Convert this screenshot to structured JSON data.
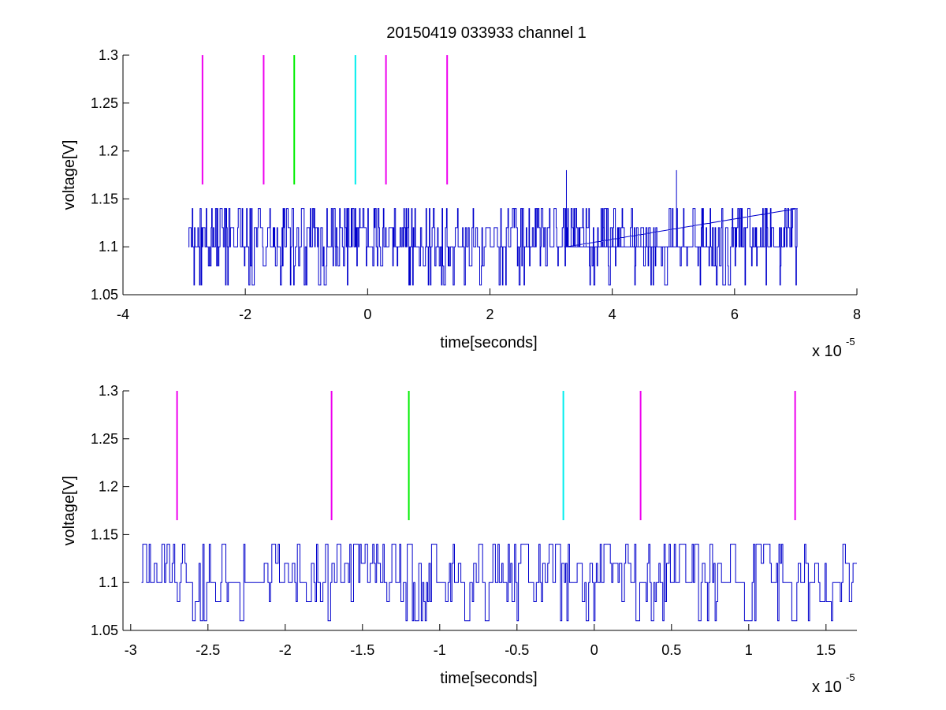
{
  "chart_data": [
    {
      "type": "line",
      "title": "20150419 033933 channel 1",
      "xlabel": "time[seconds]",
      "ylabel": "voltage[V]",
      "x_multiplier_label": "x 10",
      "x_multiplier_exponent": "-5",
      "xlim": [
        -4,
        8
      ],
      "ylim": [
        1.05,
        1.3
      ],
      "xticks": [
        -4,
        -2,
        0,
        2,
        4,
        6,
        8
      ],
      "xtick_labels": [
        "-4",
        "-2",
        "0",
        "2",
        "4",
        "6",
        "8"
      ],
      "yticks": [
        1.05,
        1.1,
        1.15,
        1.2,
        1.25,
        1.3
      ],
      "ytick_labels": [
        "1.05",
        "1.1",
        "1.15",
        "1.2",
        "1.25",
        "1.3"
      ],
      "signal": {
        "color": "#0000cc",
        "x_start": -2.93,
        "x_end": 7.03,
        "base": 1.1,
        "levels": [
          1.06,
          1.08,
          1.1,
          1.12,
          1.14
        ],
        "spikes": [
          {
            "x": 3.25,
            "y": 1.18
          },
          {
            "x": 5.05,
            "y": 1.18
          }
        ]
      },
      "markers": [
        {
          "x": -2.7,
          "y_low": 1.165,
          "y_high": 1.3,
          "color": "#ee00ee"
        },
        {
          "x": -1.7,
          "y_low": 1.165,
          "y_high": 1.3,
          "color": "#ee00ee"
        },
        {
          "x": -1.2,
          "y_low": 1.165,
          "y_high": 1.3,
          "color": "#00ee00"
        },
        {
          "x": -0.2,
          "y_low": 1.165,
          "y_high": 1.3,
          "color": "#00eeee"
        },
        {
          "x": 0.3,
          "y_low": 1.165,
          "y_high": 1.3,
          "color": "#ee00ee"
        },
        {
          "x": 1.3,
          "y_low": 1.165,
          "y_high": 1.3,
          "color": "#ee00ee"
        }
      ]
    },
    {
      "type": "line",
      "xlabel": "time[seconds]",
      "ylabel": "voltage[V]",
      "x_multiplier_label": "x 10",
      "x_multiplier_exponent": "-5",
      "xlim": [
        -3.05,
        1.7
      ],
      "ylim": [
        1.05,
        1.3
      ],
      "xticks": [
        -3,
        -2.5,
        -2,
        -1.5,
        -1,
        -0.5,
        0,
        0.5,
        1,
        1.5
      ],
      "xtick_labels": [
        "-3",
        "-2.5",
        "-2",
        "-1.5",
        "-1",
        "-0.5",
        "0",
        "0.5",
        "1",
        "1.5"
      ],
      "yticks": [
        1.05,
        1.1,
        1.15,
        1.2,
        1.25,
        1.3
      ],
      "ytick_labels": [
        "1.05",
        "1.1",
        "1.15",
        "1.2",
        "1.25",
        "1.3"
      ],
      "signal": {
        "color": "#0000cc",
        "x_start": -2.93,
        "x_end": 1.7,
        "base": 1.1,
        "levels": [
          1.06,
          1.08,
          1.1,
          1.12,
          1.14
        ],
        "spikes": []
      },
      "markers": [
        {
          "x": -2.7,
          "y_low": 1.165,
          "y_high": 1.3,
          "color": "#ee00ee"
        },
        {
          "x": -1.7,
          "y_low": 1.165,
          "y_high": 1.3,
          "color": "#ee00ee"
        },
        {
          "x": -1.2,
          "y_low": 1.165,
          "y_high": 1.3,
          "color": "#00ee00"
        },
        {
          "x": -0.2,
          "y_low": 1.165,
          "y_high": 1.3,
          "color": "#00eeee"
        },
        {
          "x": 0.3,
          "y_low": 1.165,
          "y_high": 1.3,
          "color": "#ee00ee"
        },
        {
          "x": 1.3,
          "y_low": 1.165,
          "y_high": 1.3,
          "color": "#ee00ee"
        }
      ]
    }
  ]
}
